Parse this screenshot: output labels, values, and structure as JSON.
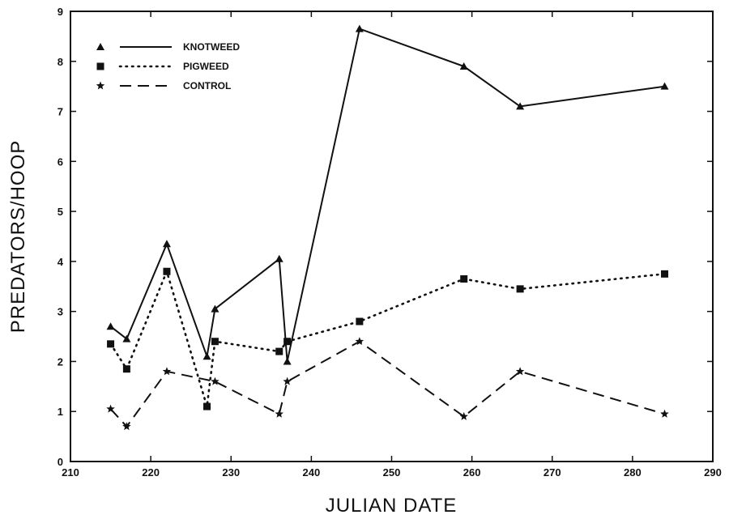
{
  "chart_data": {
    "type": "line",
    "title": "",
    "xlabel": "JULIAN DATE",
    "ylabel": "PREDATORS/HOOP",
    "xlim": [
      210,
      290
    ],
    "ylim": [
      0,
      9
    ],
    "xticks": [
      210,
      220,
      230,
      240,
      250,
      260,
      270,
      280,
      290
    ],
    "yticks": [
      0,
      1,
      2,
      3,
      4,
      5,
      6,
      7,
      8,
      9
    ],
    "grid": false,
    "legend_position": "top-left",
    "series": [
      {
        "name": "KNOTWEED",
        "line_style": "solid",
        "marker": "triangle",
        "color": "#111111",
        "x": [
          215,
          217,
          222,
          227,
          228,
          236,
          237,
          246,
          259,
          266,
          284
        ],
        "y": [
          2.7,
          2.45,
          4.35,
          2.1,
          3.05,
          4.05,
          2.0,
          8.65,
          7.9,
          7.1,
          7.5
        ]
      },
      {
        "name": "PIGWEED",
        "line_style": "dotted",
        "marker": "square",
        "color": "#111111",
        "x": [
          215,
          217,
          222,
          227,
          228,
          236,
          237,
          246,
          259,
          266,
          284
        ],
        "y": [
          2.35,
          1.85,
          3.8,
          1.1,
          2.4,
          2.2,
          2.4,
          2.8,
          3.65,
          3.45,
          3.75
        ]
      },
      {
        "name": "CONTROL",
        "line_style": "dashed",
        "marker": "star",
        "color": "#111111",
        "x": [
          215,
          217,
          222,
          228,
          236,
          237,
          246,
          259,
          266,
          284
        ],
        "y": [
          1.05,
          0.7,
          1.8,
          1.6,
          0.95,
          1.6,
          2.4,
          0.9,
          1.8,
          0.95
        ]
      }
    ]
  }
}
